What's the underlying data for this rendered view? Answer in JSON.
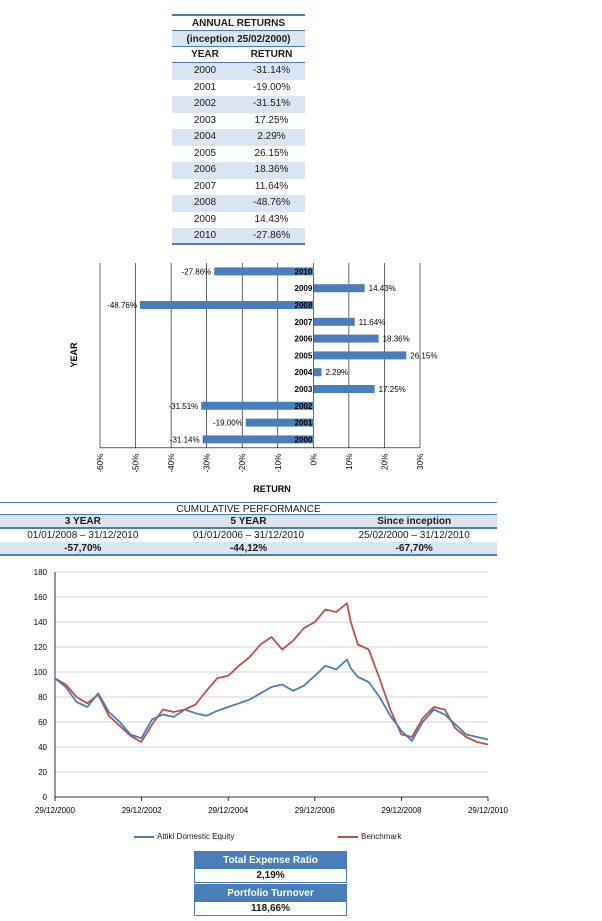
{
  "annual_returns": {
    "title": "ANNUAL RETURNS",
    "subtitle": "(inception 25/02/2000)",
    "col_year": "YEAR",
    "col_return": "RETURN",
    "rows": [
      {
        "year": "2000",
        "ret": "-31.14%"
      },
      {
        "year": "2001",
        "ret": "-19.00%"
      },
      {
        "year": "2002",
        "ret": "-31.51%"
      },
      {
        "year": "2003",
        "ret": "17.25%"
      },
      {
        "year": "2004",
        "ret": "2.29%"
      },
      {
        "year": "2005",
        "ret": "26.15%"
      },
      {
        "year": "2006",
        "ret": "18.36%"
      },
      {
        "year": "2007",
        "ret": "11.64%"
      },
      {
        "year": "2008",
        "ret": "-48.76%"
      },
      {
        "year": "2009",
        "ret": "14.43%"
      },
      {
        "year": "2010",
        "ret": "-27.86%"
      }
    ]
  },
  "cumulative": {
    "title": "CUMULATIVE PERFORMANCE",
    "cols": [
      {
        "label": "3 YEAR",
        "range": "01/01/2008 – 31/12/2010",
        "value": "-57,70%"
      },
      {
        "label": "5 YEAR",
        "range": "01/01/2006 – 31/12/2010",
        "value": "-44,12%"
      },
      {
        "label": "Since inception",
        "range": "25/02/2000 – 31/12/2010",
        "value": "-67,70%"
      }
    ]
  },
  "legend": {
    "fund": "Attiki Domestic Equity",
    "benchmark": "Benchmark"
  },
  "stats": {
    "ter_label": "Total Expense Ratio",
    "ter_value": "2,19%",
    "turnover_label": "Portfolio Turnover",
    "turnover_value": "118,66%"
  },
  "colors": {
    "bar": "#4a7ebb",
    "fund": "#4a7ebb",
    "benchmark": "#c0504d",
    "accent": "#4a7ebb"
  },
  "chart_data": [
    {
      "type": "bar",
      "orientation": "horizontal",
      "xlabel": "RETURN",
      "ylabel": "YEAR",
      "categories": [
        "2000",
        "2001",
        "2002",
        "2003",
        "2004",
        "2005",
        "2006",
        "2007",
        "2008",
        "2009",
        "2010"
      ],
      "values": [
        -31.14,
        -19.0,
        -31.51,
        17.25,
        2.29,
        26.15,
        18.36,
        11.64,
        -48.76,
        14.43,
        -27.86
      ],
      "data_labels": [
        "-31.14%",
        "-19.00%",
        "-31.51%",
        "17.25%",
        "2.29%",
        "26.15%",
        "18.36%",
        "11.64%",
        "-48.76%",
        "14.43%",
        "-27.86%"
      ],
      "xlim": [
        -60,
        30
      ],
      "xticks": [
        "-60%",
        "-50%",
        "-40%",
        "-30%",
        "-20%",
        "-10%",
        "0%",
        "10%",
        "20%",
        "30%"
      ],
      "grid": true
    },
    {
      "type": "line",
      "ylim": [
        0,
        180
      ],
      "yticks": [
        "0",
        "20",
        "40",
        "60",
        "80",
        "100",
        "120",
        "140",
        "160",
        "180"
      ],
      "xticks": [
        "29/12/2000",
        "29/12/2002",
        "29/12/2004",
        "29/12/2006",
        "29/12/2008",
        "29/12/2010"
      ],
      "x": [
        "2000-12-29",
        "2001-03-29",
        "2001-06-29",
        "2001-09-28",
        "2001-12-28",
        "2002-03-29",
        "2002-06-28",
        "2002-09-27",
        "2002-12-27",
        "2003-03-28",
        "2003-06-27",
        "2003-09-26",
        "2003-12-29",
        "2004-03-29",
        "2004-06-28",
        "2004-09-27",
        "2004-12-29",
        "2005-03-29",
        "2005-06-28",
        "2005-09-27",
        "2005-12-29",
        "2006-03-29",
        "2006-06-28",
        "2006-09-27",
        "2006-12-29",
        "2007-03-29",
        "2007-06-28",
        "2007-09-27",
        "2007-10-29",
        "2007-12-28",
        "2008-03-28",
        "2008-06-27",
        "2008-09-26",
        "2008-12-29",
        "2009-03-27",
        "2009-06-26",
        "2009-09-28",
        "2009-12-29",
        "2010-03-29",
        "2010-06-28",
        "2010-09-28",
        "2010-12-29"
      ],
      "series": [
        {
          "name": "Attiki Domestic Equity",
          "values": [
            95,
            88,
            76,
            72,
            83,
            68,
            60,
            50,
            47,
            62,
            66,
            64,
            70,
            67,
            65,
            69,
            72,
            75,
            78,
            83,
            88,
            90,
            85,
            89,
            97,
            105,
            102,
            110,
            103,
            96,
            92,
            80,
            65,
            53,
            45,
            60,
            70,
            66,
            58,
            50,
            48,
            46
          ]
        },
        {
          "name": "Benchmark",
          "values": [
            95,
            90,
            80,
            75,
            82,
            65,
            57,
            49,
            44,
            58,
            70,
            68,
            70,
            74,
            85,
            95,
            97,
            105,
            112,
            122,
            128,
            118,
            125,
            135,
            140,
            150,
            148,
            155,
            140,
            122,
            118,
            95,
            70,
            50,
            48,
            63,
            72,
            70,
            55,
            48,
            44,
            42
          ]
        }
      ],
      "grid": true,
      "legend": "bottom"
    }
  ]
}
